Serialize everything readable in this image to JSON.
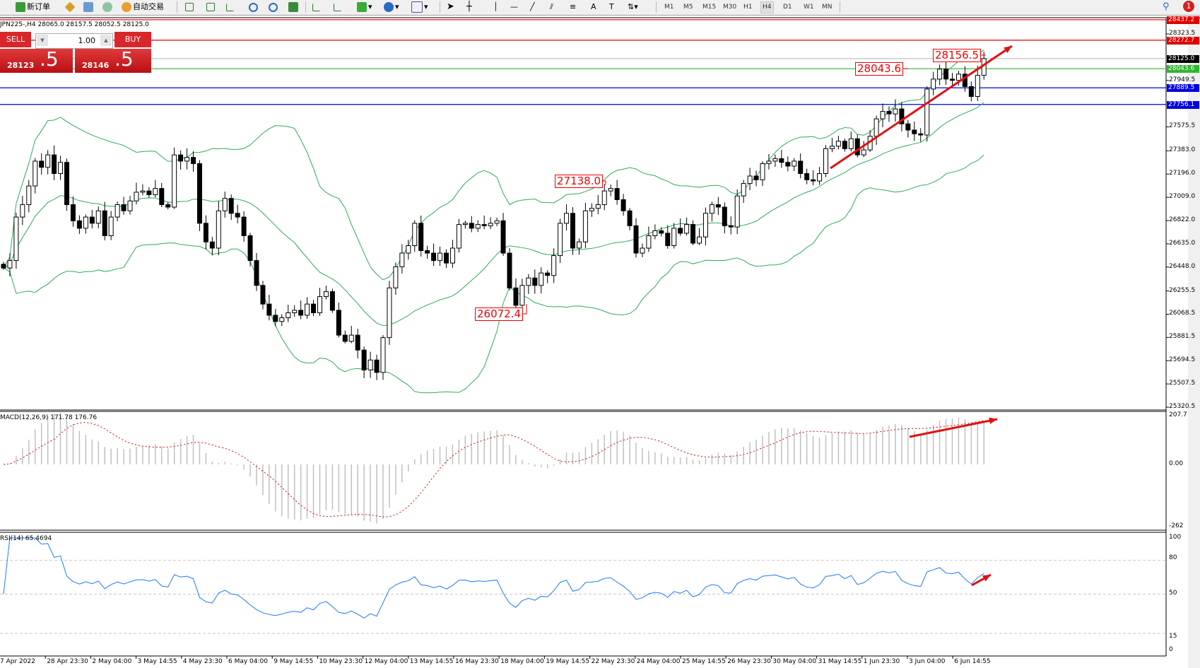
{
  "toolbar": {
    "new_order": "新订单",
    "auto_trading": "自动交易",
    "timeframes": [
      "M1",
      "M5",
      "M15",
      "M30",
      "H1",
      "H4",
      "D1",
      "W1",
      "MN"
    ],
    "active_timeframe": "H4",
    "notification_count": "1"
  },
  "chart": {
    "info": "JPN225-,H4  28065.0 28157.5 28052.5 28125.0",
    "symbol": "JPN225-",
    "timeframe": "H4"
  },
  "trade_panel": {
    "sell_label": "SELL",
    "buy_label": "BUY",
    "lot": "1.00",
    "sell_price_main": "28123",
    "sell_price_frac": ".5",
    "buy_price_main": "28146",
    "buy_price_frac": ".5"
  },
  "price_axis": {
    "ticks": [
      "28323.5",
      "27949.5",
      "27575.5",
      "27383.0",
      "27196.0",
      "27009.0",
      "26822.0",
      "26635.0",
      "26448.0",
      "26255.5",
      "26068.5",
      "25881.5",
      "25694.5",
      "25507.5",
      "25320.5"
    ],
    "range": [
      25320.5,
      28437.2
    ]
  },
  "levels": [
    {
      "price": "28437.2",
      "color": "#e00000"
    },
    {
      "price": "28272.7",
      "color": "#e00000"
    },
    {
      "price": "28125.0",
      "color": "#000000",
      "line": "#c0c0c0"
    },
    {
      "price": "28043.6",
      "color": "#32b432"
    },
    {
      "price": "27889.5",
      "color": "#0000e0"
    },
    {
      "price": "27756.1",
      "color": "#0000e0"
    }
  ],
  "annotations": [
    "28043.6",
    "28156.5",
    "27138.0",
    "26072.4"
  ],
  "time_axis": [
    "7 Apr 2022",
    "28 Apr 23:30",
    "2 May 04:00",
    "3 May 14:55",
    "4 May 23:30",
    "6 May 04:00",
    "9 May 14:55",
    "10 May 23:30",
    "12 May 04:00",
    "13 May 14:55",
    "16 May 23:30",
    "18 May 04:00",
    "19 May 14:55",
    "22 May 23:30",
    "24 May 04:00",
    "25 May 14:55",
    "26 May 23:30",
    "30 May 04:00",
    "31 May 14:55",
    "1 Jun 23:30",
    "3 Jun 04:00",
    "6 Jun 14:55"
  ],
  "macd": {
    "label": "MACD(12,26,9) 171.78 176.76",
    "axis": [
      "207.7",
      "0.00",
      "-262"
    ]
  },
  "rsi": {
    "label": "RSI(14) 65.4694",
    "axis": [
      "100",
      "80",
      "50",
      "15",
      "0"
    ]
  },
  "chart_data": {
    "type": "candlestick",
    "indicators": [
      "Bollinger Bands",
      "MACD(12,26,9)",
      "RSI(14)"
    ],
    "closes": [
      26440,
      26500,
      26850,
      26950,
      27100,
      27300,
      27250,
      27350,
      27200,
      27290,
      26950,
      26820,
      26760,
      26850,
      26800,
      26900,
      26700,
      26850,
      26950,
      26900,
      26980,
      27050,
      27060,
      27030,
      27080,
      26950,
      26930,
      27350,
      27300,
      27330,
      27280,
      26800,
      26650,
      26600,
      26900,
      27000,
      26880,
      26850,
      26700,
      26500,
      26300,
      26150,
      26060,
      26010,
      26040,
      26080,
      26100,
      26060,
      26150,
      26080,
      26210,
      26250,
      26100,
      25900,
      25850,
      25900,
      25780,
      25620,
      25700,
      25600,
      25880,
      26280,
      26450,
      26560,
      26620,
      26800,
      26580,
      26560,
      26500,
      26560,
      26480,
      26600,
      26790,
      26800,
      26760,
      26790,
      26780,
      26800,
      26820,
      26560,
      26280,
      26140,
      26300,
      26360,
      26300,
      26400,
      26380,
      26540,
      26800,
      26880,
      26600,
      26650,
      26900,
      26920,
      26950,
      27060,
      27080,
      26990,
      26900,
      26780,
      26560,
      26600,
      26700,
      26740,
      26720,
      26620,
      26760,
      26720,
      26790,
      26640,
      26690,
      26880,
      26950,
      26930,
      26780,
      26770,
      27020,
      27120,
      27180,
      27150,
      27280,
      27300,
      27320,
      27290,
      27260,
      27300,
      27200,
      27150,
      27140,
      27200,
      27400,
      27420,
      27460,
      27400,
      27480,
      27350,
      27390,
      27500,
      27640,
      27700,
      27680,
      27720,
      27600,
      27550,
      27520,
      27510,
      27880,
      27960,
      28040,
      27960,
      27950,
      28000,
      27900,
      27820,
      27990,
      28125
    ]
  }
}
